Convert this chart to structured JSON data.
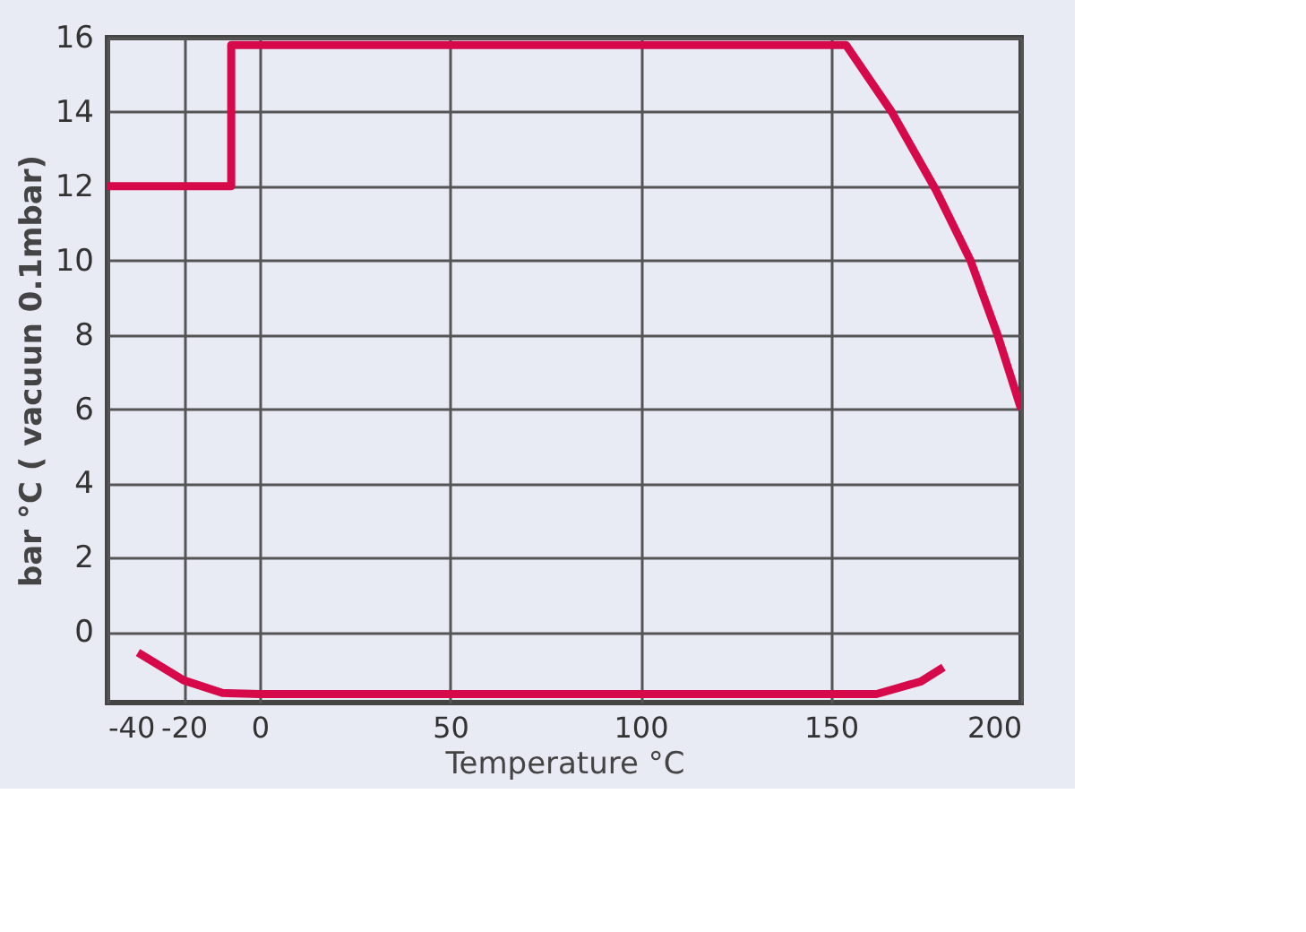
{
  "chart_data": {
    "type": "line",
    "xlabel": "Temperature °C",
    "ylabel": "bar °C ( vacuun 0.1mbar)",
    "xlim": [
      -40,
      200
    ],
    "ylim": [
      -1.9,
      16
    ],
    "xticks": [
      -40,
      -20,
      0,
      50,
      100,
      150,
      200
    ],
    "yticks": [
      0,
      2,
      4,
      6,
      8,
      10,
      12,
      14,
      16
    ],
    "grid": true,
    "marker": "none",
    "line_style": "solid",
    "series": [
      {
        "color": "#d6094a",
        "x": [
          -40,
          -7.5,
          -7.5,
          154,
          166,
          177.6,
          186.7,
          193.8,
          200
        ],
        "values": [
          12,
          12,
          15.8,
          15.8,
          14.0,
          11.9,
          10.0,
          8.0,
          6.0
        ]
      },
      {
        "color": "#d6094a",
        "x": [
          -32,
          -20,
          -9.8,
          0,
          162,
          173.7,
          179.6
        ],
        "values": [
          -0.55,
          -1.3,
          -1.64,
          -1.67,
          -1.67,
          -1.33,
          -0.95
        ]
      }
    ]
  }
}
